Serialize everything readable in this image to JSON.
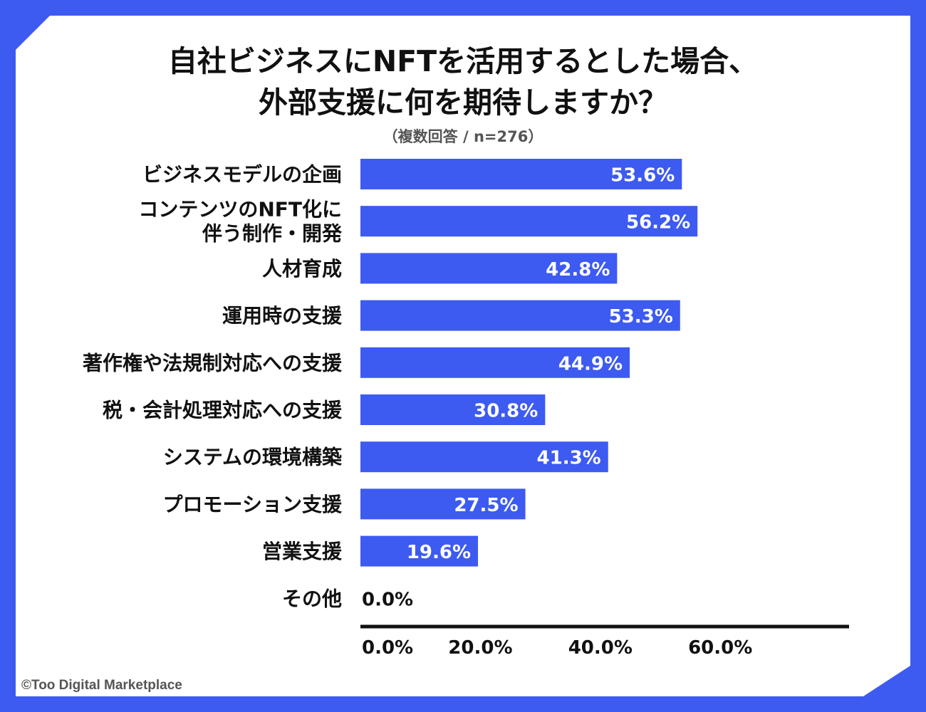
{
  "chart_data": {
    "type": "bar",
    "orientation": "horizontal",
    "title": [
      "自社ビジネスにNFTを活用するとした場合、",
      "外部支援に何を期待しますか？"
    ],
    "subtitle": "（複数回答 / n=276）",
    "categories": [
      [
        "ビジネスモデルの企画"
      ],
      [
        "コンテンツのNFT化に",
        "伴う制作・開発"
      ],
      [
        "人材育成"
      ],
      [
        "運用時の支援"
      ],
      [
        "著作権や法規制対応への支援"
      ],
      [
        "税・会計処理対応への支援"
      ],
      [
        "システムの環境構築"
      ],
      [
        "プロモーション支援"
      ],
      [
        "営業支援"
      ],
      [
        "その他"
      ]
    ],
    "values": [
      53.6,
      56.2,
      42.8,
      53.3,
      44.9,
      30.8,
      41.3,
      27.5,
      19.6,
      0.0
    ],
    "value_labels": [
      "53.6%",
      "56.2%",
      "42.8%",
      "53.3%",
      "44.9%",
      "30.8%",
      "41.3%",
      "27.5%",
      "19.6%",
      "0.0%"
    ],
    "xlim": [
      0,
      80
    ],
    "xticks": [
      0,
      20,
      40,
      60
    ],
    "xtick_labels": [
      "0.0%",
      "20.0%",
      "40.0%",
      "60.0%"
    ],
    "xlabel": "",
    "ylabel": "",
    "grid": false,
    "legend": "none"
  },
  "footer": "©Too Digital Marketplace",
  "colors": {
    "bar": "#3d5af1",
    "frame": "#3d5af1",
    "value_text_inside": "#ffffff",
    "value_text_outside": "#111111",
    "axis": "#111111"
  }
}
